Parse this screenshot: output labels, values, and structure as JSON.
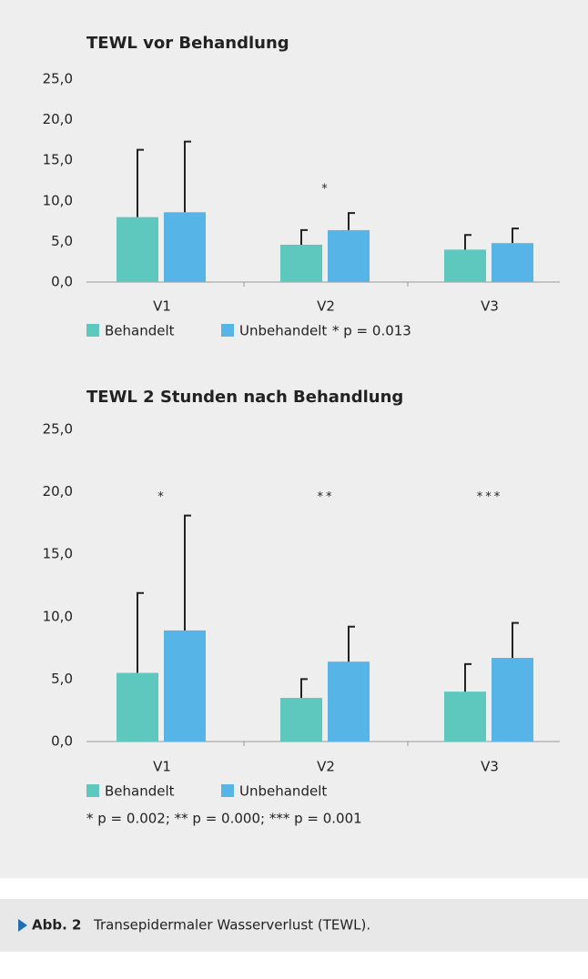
{
  "chart_data": [
    {
      "type": "bar",
      "title": "TEWL vor Behandlung",
      "categories": [
        "V1",
        "V2",
        "V3"
      ],
      "series": [
        {
          "name": "Behandelt",
          "color": "#5ec8be",
          "values": [
            8.0,
            4.6,
            4.0
          ],
          "errors": [
            8.3,
            1.8,
            1.8
          ]
        },
        {
          "name": "Unbehandelt",
          "color": "#56b4e6",
          "values": [
            8.6,
            6.4,
            4.8
          ],
          "errors": [
            8.7,
            2.1,
            1.8
          ]
        }
      ],
      "annotations": [
        null,
        "*",
        null
      ],
      "note": "* p = 0.013",
      "ylim": [
        0,
        25
      ],
      "yticks": [
        {
          "value": 0,
          "label": "0,0"
        },
        {
          "value": 5,
          "label": "5,0"
        },
        {
          "value": 10,
          "label": "10,0"
        },
        {
          "value": 15,
          "label": "15,0"
        },
        {
          "value": 20,
          "label": "20,0"
        },
        {
          "value": 25,
          "label": "25,0"
        }
      ],
      "grid": false
    },
    {
      "type": "bar",
      "title": "TEWL 2 Stunden nach Behandlung",
      "categories": [
        "V1",
        "V2",
        "V3"
      ],
      "series": [
        {
          "name": "Behandelt",
          "color": "#5ec8be",
          "values": [
            5.5,
            3.5,
            4.0
          ],
          "errors": [
            6.4,
            1.5,
            2.2
          ]
        },
        {
          "name": "Unbehandelt",
          "color": "#56b4e6",
          "values": [
            8.9,
            6.4,
            6.7
          ],
          "errors": [
            9.2,
            2.8,
            2.8
          ]
        }
      ],
      "annotations": [
        "*",
        "**",
        "***"
      ],
      "note": "* p = 0.002; ** p = 0.000; *** p = 0.001",
      "ylim": [
        0,
        25
      ],
      "yticks": [
        {
          "value": 0,
          "label": "0,0"
        },
        {
          "value": 5,
          "label": "5,0"
        },
        {
          "value": 10,
          "label": "10,0"
        },
        {
          "value": 15,
          "label": "15,0"
        },
        {
          "value": 20,
          "label": "20,0"
        },
        {
          "value": 25,
          "label": "25,0"
        }
      ],
      "grid": false
    }
  ],
  "caption": {
    "label": "Abb. 2",
    "text": "Transepidermaler Wasserverlust (TEWL)."
  }
}
